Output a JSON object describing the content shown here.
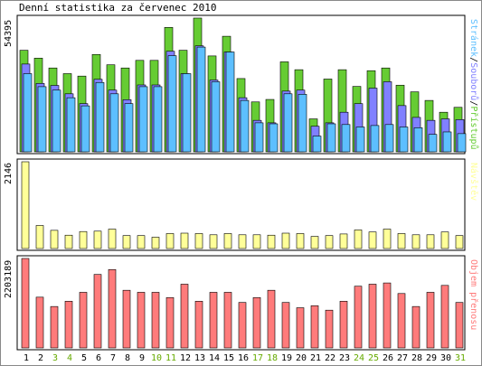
{
  "title": "Denní statistika za červenec 2010",
  "chart_data": [
    {
      "type": "bar",
      "panel": "top",
      "max_label": "54395",
      "ylim": [
        0,
        54395
      ],
      "legend": [
        {
          "name": "Stránek",
          "color": "#5dbfff"
        },
        {
          "name": "Souborů",
          "color": "#8080ff"
        },
        {
          "name": "Přístupů",
          "color": "#66cc33"
        }
      ],
      "legend_separator": "/",
      "categories": [
        "1",
        "2",
        "3",
        "4",
        "5",
        "6",
        "7",
        "8",
        "9",
        "10",
        "11",
        "12",
        "13",
        "14",
        "15",
        "16",
        "17",
        "18",
        "19",
        "20",
        "21",
        "22",
        "23",
        "24",
        "25",
        "26",
        "27",
        "28",
        "29",
        "30",
        "31"
      ],
      "weekend_categories": [
        "3",
        "4",
        "10",
        "11",
        "17",
        "18",
        "24",
        "25",
        "31"
      ],
      "series": [
        {
          "name": "Přístupů",
          "color": "#66cc33",
          "values": [
            41300,
            38100,
            34100,
            31800,
            30800,
            39600,
            35400,
            34100,
            37200,
            37200,
            50600,
            41300,
            54400,
            39000,
            47000,
            29800,
            20300,
            21300,
            36600,
            33400,
            13400,
            29600,
            33400,
            26600,
            33000,
            34100,
            27100,
            24400,
            20900,
            16100,
            18100
          ]
        },
        {
          "name": "Souborů",
          "color": "#8080ff",
          "values": [
            35700,
            27800,
            27000,
            23600,
            19600,
            29500,
            25100,
            21200,
            27200,
            27200,
            40900,
            31800,
            43100,
            29200,
            40600,
            22000,
            12800,
            11800,
            24700,
            25100,
            10400,
            11800,
            16100,
            19600,
            25900,
            28500,
            18800,
            14000,
            12800,
            13400,
            13100
          ]
        },
        {
          "name": "Stránek",
          "color": "#5dbfff",
          "values": [
            31800,
            26500,
            25100,
            22000,
            18700,
            28200,
            23600,
            19600,
            26500,
            26500,
            39100,
            31800,
            42600,
            28500,
            40600,
            20900,
            11800,
            11400,
            23600,
            23400,
            6400,
            11400,
            11100,
            10100,
            10700,
            11100,
            10100,
            9800,
            7100,
            8100,
            7400
          ]
        }
      ]
    },
    {
      "type": "bar",
      "panel": "middle",
      "max_label": "2146",
      "ylim": [
        0,
        2146
      ],
      "legend": [
        {
          "name": "Návštěv",
          "color": "#ffff99"
        }
      ],
      "series": [
        {
          "name": "Návštěv",
          "color": "#ffff99",
          "values": [
            2146,
            570,
            450,
            330,
            420,
            430,
            480,
            320,
            320,
            280,
            370,
            380,
            370,
            340,
            370,
            340,
            340,
            330,
            380,
            370,
            300,
            320,
            360,
            460,
            410,
            480,
            370,
            340,
            340,
            410,
            320
          ]
        }
      ]
    },
    {
      "type": "bar",
      "panel": "bottom",
      "max_label": "2203189",
      "ylim": [
        0,
        2203189
      ],
      "legend": [
        {
          "name": "Objem přenosu",
          "color": "#ff7b7b"
        }
      ],
      "series": [
        {
          "name": "Objem přenosu",
          "color": "#ff7b7b",
          "values": [
            2203189,
            1250000,
            1020000,
            1150000,
            1370000,
            1810000,
            1930000,
            1420000,
            1370000,
            1370000,
            1240000,
            1570000,
            1150000,
            1370000,
            1370000,
            1120000,
            1240000,
            1420000,
            1120000,
            990000,
            1040000,
            930000,
            1150000,
            1520000,
            1570000,
            1600000,
            1340000,
            1020000,
            1370000,
            1540000,
            1120000
          ]
        }
      ]
    }
  ],
  "colors": {
    "weekday_label": "#000000",
    "weekend_label": "#66aa00",
    "bar_outline": "#000000"
  }
}
